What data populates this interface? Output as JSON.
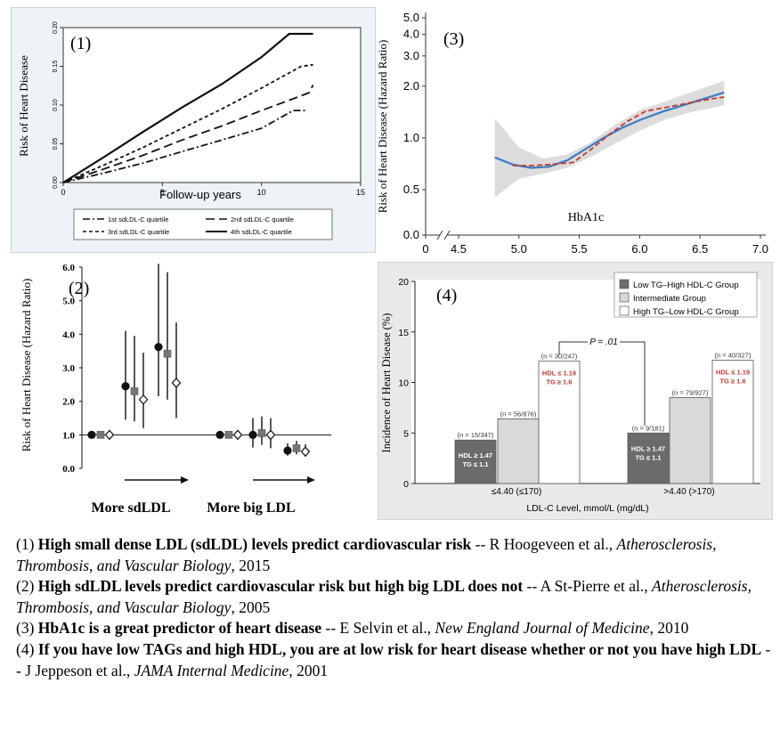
{
  "chart_data": [
    {
      "panel_label": "(1)",
      "type": "line",
      "xlabel": "Follow-up years",
      "ylabel": "Risk of Heart Disease",
      "xlim": [
        0,
        15
      ],
      "ylim": [
        0,
        0.2
      ],
      "x_ticks": [
        "0",
        "5",
        "10",
        "15"
      ],
      "y_ticks": [
        "0.00",
        "0.05",
        "0.10",
        "0.15",
        "0.20"
      ],
      "legend": [
        "1st sdLDL-C quartile",
        "2nd sdLDL-C quartile",
        "3rd sdLDL-C quartile",
        "4th sdLDL-C quartile"
      ],
      "legend_placement": "bottom",
      "series": [
        {
          "name": "1st sdLDL-C quartile",
          "style": "dashdot",
          "x": [
            0,
            2,
            4,
            6,
            8,
            10,
            11.6,
            12.3
          ],
          "y": [
            0,
            0.012,
            0.025,
            0.04,
            0.055,
            0.07,
            0.093,
            0.093
          ]
        },
        {
          "name": "2nd sdLDL-C quartile",
          "style": "longdash",
          "x": [
            0,
            2,
            4,
            6,
            8,
            10,
            12,
            12.4,
            12.6
          ],
          "y": [
            0,
            0.017,
            0.035,
            0.055,
            0.073,
            0.093,
            0.112,
            0.116,
            0.126
          ]
        },
        {
          "name": "3rd sdLDL-C quartile",
          "style": "shortdash",
          "x": [
            0,
            2,
            4,
            6,
            8,
            10,
            12,
            12.6
          ],
          "y": [
            0,
            0.022,
            0.045,
            0.07,
            0.095,
            0.122,
            0.15,
            0.152
          ]
        },
        {
          "name": "4th sdLDL-C quartile",
          "style": "solid",
          "x": [
            0,
            2,
            4,
            6,
            8,
            10,
            11.4,
            12.6
          ],
          "y": [
            0,
            0.032,
            0.065,
            0.097,
            0.127,
            0.162,
            0.192,
            0.192
          ]
        }
      ]
    },
    {
      "panel_label": "(2)",
      "type": "scatter",
      "ylabel": "Risk of Heart Disease (Hazard Ratio)",
      "ylim": [
        0,
        6
      ],
      "y_ticks": [
        "0.0",
        "1.0",
        "2.0",
        "3.0",
        "4.0",
        "5.0",
        "6.0"
      ],
      "reference_line": 1.0,
      "group_labels": [
        "More sdLDL",
        "More big LDL"
      ],
      "marker_order": [
        "circle",
        "square",
        "diamond"
      ],
      "groups": [
        {
          "name": "More sdLDL",
          "points": [
            {
              "marker": "circle",
              "value": 1.0
            },
            {
              "marker": "square",
              "value": 1.0
            },
            {
              "marker": "diamond",
              "value": 1.0
            },
            {
              "marker": "circle",
              "value": 2.45,
              "lo": 1.45,
              "hi": 4.1
            },
            {
              "marker": "square",
              "value": 2.3,
              "lo": 1.4,
              "hi": 3.95
            },
            {
              "marker": "diamond",
              "value": 2.05,
              "lo": 1.2,
              "hi": 3.45
            },
            {
              "marker": "circle",
              "value": 3.62,
              "lo": 2.15,
              "hi": 6.1
            },
            {
              "marker": "square",
              "value": 3.42,
              "lo": 2.05,
              "hi": 5.85
            },
            {
              "marker": "diamond",
              "value": 2.55,
              "lo": 1.5,
              "hi": 4.35
            }
          ]
        },
        {
          "name": "More big LDL",
          "points": [
            {
              "marker": "circle",
              "value": 1.0
            },
            {
              "marker": "square",
              "value": 1.0
            },
            {
              "marker": "diamond",
              "value": 1.0
            },
            {
              "marker": "circle",
              "value": 1.0,
              "lo": 0.62,
              "hi": 1.5
            },
            {
              "marker": "square",
              "value": 1.05,
              "lo": 0.7,
              "hi": 1.55
            },
            {
              "marker": "diamond",
              "value": 1.0,
              "lo": 0.6,
              "hi": 1.5
            },
            {
              "marker": "circle",
              "value": 0.53,
              "lo": 0.38,
              "hi": 0.75
            },
            {
              "marker": "square",
              "value": 0.6,
              "lo": 0.42,
              "hi": 0.82
            },
            {
              "marker": "diamond",
              "value": 0.5,
              "lo": 0.36,
              "hi": 0.72
            }
          ]
        }
      ]
    },
    {
      "panel_label": "(3)",
      "type": "line",
      "xlabel": "HbA1c",
      "ylabel": "Risk of Heart Disease (Hazard Ratio)",
      "xlim": [
        4.5,
        7.0
      ],
      "x_ticks": [
        "0",
        "4.5",
        "5.0",
        "5.5",
        "6.0",
        "6.5",
        "7.0"
      ],
      "y_ticks": [
        "0.0",
        "0.5",
        "1.0",
        "2.0",
        "3.0",
        "4.0",
        "5.0"
      ],
      "y_scale": "log (broken axis at 0)",
      "series": [
        {
          "name": "",
          "style": "solid",
          "color": "#3a7cc4",
          "x": [
            4.8,
            4.95,
            5.1,
            5.25,
            5.4,
            5.55,
            5.7,
            5.85,
            6.0,
            6.2,
            6.4,
            6.6,
            6.7
          ],
          "y": [
            0.77,
            0.7,
            0.67,
            0.68,
            0.74,
            0.86,
            1.0,
            1.14,
            1.27,
            1.43,
            1.58,
            1.75,
            1.84
          ]
        },
        {
          "name": "",
          "style": "dashed",
          "color": "#c8372f",
          "x": [
            4.95,
            5.1,
            5.25,
            5.45,
            5.6,
            5.75,
            5.9,
            6.05,
            6.25,
            6.45,
            6.6,
            6.7
          ],
          "y": [
            0.69,
            0.69,
            0.7,
            0.72,
            0.86,
            1.05,
            1.25,
            1.43,
            1.52,
            1.62,
            1.69,
            1.73
          ]
        }
      ],
      "band": {
        "x": [
          4.8,
          5.0,
          5.2,
          5.4,
          5.6,
          5.8,
          6.0,
          6.2,
          6.4,
          6.7
        ],
        "lo": [
          0.45,
          0.58,
          0.62,
          0.67,
          0.78,
          0.93,
          1.1,
          1.27,
          1.4,
          1.55
        ],
        "hi": [
          1.3,
          0.88,
          0.76,
          0.8,
          0.95,
          1.2,
          1.45,
          1.62,
          1.82,
          2.15
        ]
      }
    },
    {
      "panel_label": "(4)",
      "type": "bar",
      "xlabel": "LDL-C Level, mmol/L (mg/dL)",
      "ylabel": "Incidence of Heart Disease (%)",
      "ylim": [
        0,
        20
      ],
      "y_ticks": [
        "0",
        "5",
        "10",
        "15",
        "20"
      ],
      "categories": [
        "≤4.40 (≤170)",
        ">4.40 (>170)"
      ],
      "legend": [
        "Low TG–High HDL-C Group",
        "Intermediate Group",
        "High TG–Low HDL-C Group"
      ],
      "legend_placement": "top-right",
      "series": [
        {
          "name": "Low TG–High HDL-C Group",
          "color": "#6b6b6b",
          "values": [
            4.3,
            5.0
          ],
          "counts": [
            "(n = 15/347)",
            "(n = 9/181)"
          ],
          "inner_label": [
            "HDL ≥ 1.47",
            "TG ≤ 1.1"
          ]
        },
        {
          "name": "Intermediate Group",
          "color": "#d9d9d9",
          "values": [
            6.4,
            8.5
          ],
          "counts": [
            "(n = 56/876)",
            "(n = 79/927)"
          ]
        },
        {
          "name": "High TG–Low HDL-C Group",
          "color": "#ffffff",
          "values": [
            12.1,
            12.2
          ],
          "counts": [
            "(n = 30/247)",
            "(n = 40/327)"
          ],
          "inner_label": [
            "HDL ≤ 1.19",
            "TG ≥ 1.6"
          ]
        }
      ],
      "annotation": "P = .01"
    }
  ],
  "captions": [
    {
      "num": "(1)",
      "title": "High small dense LDL (sdLDL) levels predict cardiovascular risk",
      "sep": "--",
      "authors": "R Hoogeveen et al.,",
      "journal": "Atherosclerosis, Thrombosis,  and Vascular Biology",
      "year": ", 2015"
    },
    {
      "num": "(2)",
      "title": "High sdLDL levels predict cardiovascular risk but high big LDL does not",
      "sep": "--",
      "authors": "A St-Pierre et al.,",
      "journal": "Atherosclerosis, Thrombosis,  and Vascular Biology",
      "year": ", 2005"
    },
    {
      "num": "(3)",
      "title": "HbA1c is a great predictor of heart disease",
      "sep": "--",
      "authors": "E Selvin et al.,",
      "journal": "New England Journal of Medicine",
      "year": ", 2010"
    },
    {
      "num": "(4)",
      "title": "If you have low TAGs and high HDL, you are at low risk for heart disease whether or not you have high LDL",
      "sep": "--",
      "authors": "J Jeppeson et al.,",
      "journal": "JAMA Internal Medicine",
      "year": ", 2001"
    }
  ]
}
